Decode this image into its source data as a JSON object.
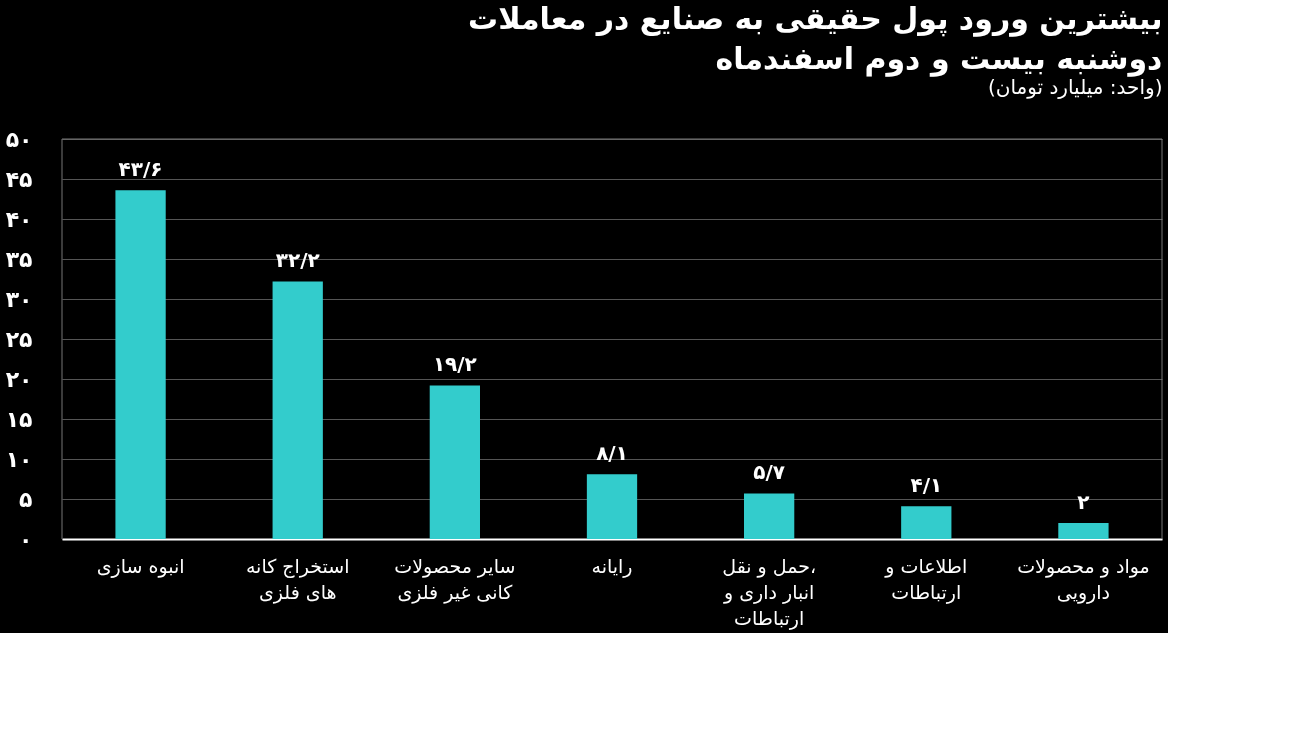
{
  "chart_data": {
    "type": "bar",
    "title": "بیشترین ورود پول حقیقی به صنایع در معاملات دوشنبه بیست و دوم اسفندماه",
    "subtitle": "(واحد: میلیارد تومان)",
    "categories": [
      "انبوه سازی",
      "استخراج کانه های فلزی",
      "سایر محصولات کانی غیر فلزی",
      "رایانه",
      "حمل و نقل، انبار داری و ارتباطات",
      "اطلاعات و ارتباطات",
      "مواد و محصولات دارویی"
    ],
    "values": [
      43.6,
      32.2,
      19.2,
      8.1,
      5.7,
      4.1,
      2
    ],
    "value_labels": [
      "۴۳/۶",
      "۳۲/۲",
      "۱۹/۲",
      "۸/۱",
      "۵/۷",
      "۴/۱",
      "۲"
    ],
    "color": "#33cccc",
    "ylim": [
      0,
      50
    ],
    "yticks": [
      {
        "value": 0,
        "label": "۰"
      },
      {
        "value": 5,
        "label": "۵"
      },
      {
        "value": 10,
        "label": "۱۰"
      },
      {
        "value": 15,
        "label": "۱۵"
      },
      {
        "value": 20,
        "label": "۲۰"
      },
      {
        "value": 25,
        "label": "۲۵"
      },
      {
        "value": 30,
        "label": "۳۰"
      },
      {
        "value": 35,
        "label": "۳۵"
      },
      {
        "value": 40,
        "label": "۴۰"
      },
      {
        "value": 45,
        "label": "۴۵"
      },
      {
        "value": 50,
        "label": "۵۰"
      }
    ],
    "grid": "y"
  }
}
